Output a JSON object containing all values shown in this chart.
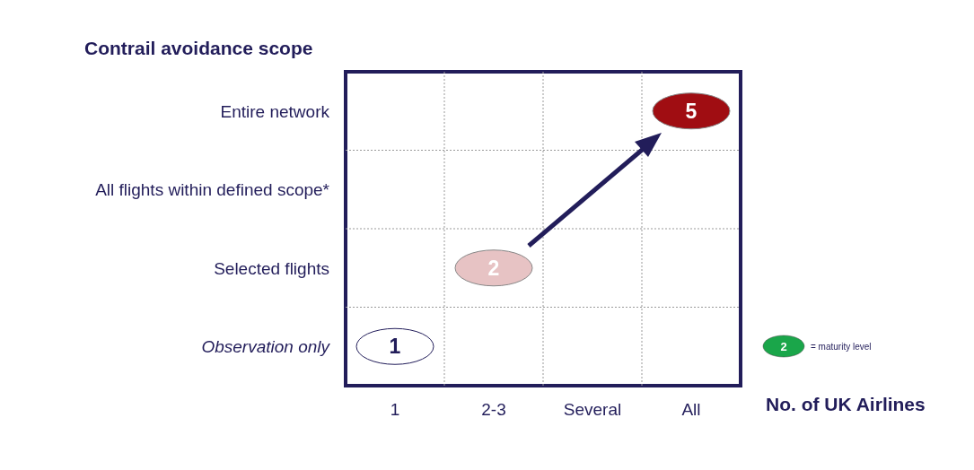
{
  "chart_data": {
    "type": "heatmap",
    "xlabel": "No. of UK Airlines",
    "ylabel": "Contrail avoidance scope",
    "categories": [
      "1",
      "2-3",
      "Several",
      "All"
    ],
    "y_categories": [
      "Entire network",
      "All flights within defined scope*",
      "Selected flights",
      "Observation only"
    ],
    "cells": [
      [
        null,
        null,
        null,
        5
      ],
      [
        null,
        null,
        null,
        null
      ],
      [
        null,
        2,
        null,
        null
      ],
      [
        1,
        null,
        null,
        null
      ]
    ],
    "cell_labels": [
      [
        null,
        null,
        null,
        "5"
      ],
      [
        null,
        null,
        null,
        null
      ],
      [
        null,
        "2",
        null,
        null
      ],
      [
        "1",
        null,
        null,
        null
      ]
    ],
    "annotations": [
      "2",
      "= maturity level"
    ]
  }
}
